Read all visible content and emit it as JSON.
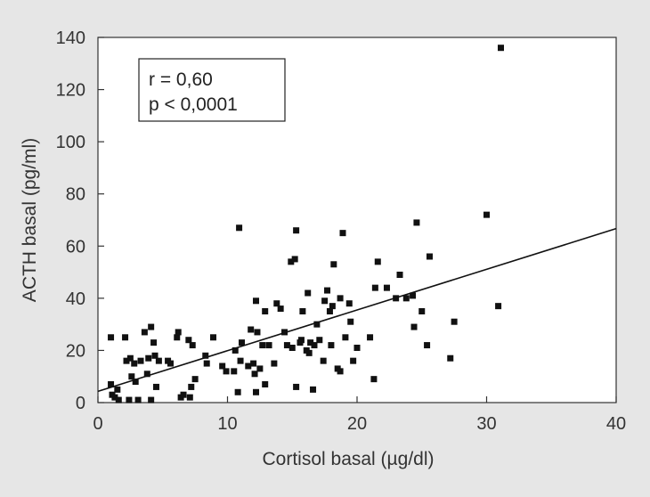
{
  "chart_data": {
    "type": "scatter",
    "title": "",
    "xlabel": "Cortisol basal (µg/dl)",
    "ylabel": "ACTH basal (pg/ml)",
    "xlim": [
      0,
      40
    ],
    "ylim": [
      0,
      140
    ],
    "x_ticks": [
      "0",
      "10",
      "20",
      "30",
      "40"
    ],
    "y_ticks": [
      "0",
      "20",
      "40",
      "60",
      "80",
      "100",
      "120",
      "140"
    ],
    "grid": false,
    "legend": "none",
    "annotations": {
      "r": "r = 0,60",
      "p": "p < 0,0001"
    },
    "regression_line": {
      "x": [
        0,
        40
      ],
      "y": [
        4.3,
        66.7
      ]
    },
    "marker_color": "#111111",
    "points": [
      [
        1.0,
        25
      ],
      [
        1.0,
        7
      ],
      [
        1.1,
        3
      ],
      [
        1.3,
        2
      ],
      [
        1.5,
        5
      ],
      [
        1.6,
        1
      ],
      [
        2.1,
        25
      ],
      [
        2.2,
        16
      ],
      [
        2.4,
        1
      ],
      [
        2.5,
        17
      ],
      [
        2.6,
        10
      ],
      [
        2.8,
        15
      ],
      [
        2.9,
        8
      ],
      [
        3.1,
        1
      ],
      [
        3.3,
        16
      ],
      [
        3.6,
        27
      ],
      [
        3.8,
        11
      ],
      [
        3.9,
        17
      ],
      [
        4.1,
        29
      ],
      [
        4.1,
        1
      ],
      [
        4.3,
        23
      ],
      [
        4.4,
        18
      ],
      [
        4.5,
        6
      ],
      [
        4.7,
        16
      ],
      [
        5.4,
        16
      ],
      [
        5.6,
        15
      ],
      [
        6.1,
        25
      ],
      [
        6.2,
        27
      ],
      [
        6.4,
        2
      ],
      [
        6.6,
        3
      ],
      [
        7.0,
        24
      ],
      [
        7.1,
        2
      ],
      [
        7.2,
        6
      ],
      [
        7.3,
        22
      ],
      [
        7.5,
        9
      ],
      [
        8.3,
        18
      ],
      [
        8.4,
        15
      ],
      [
        8.9,
        25
      ],
      [
        9.6,
        14
      ],
      [
        9.9,
        12
      ],
      [
        10.5,
        12
      ],
      [
        10.6,
        20
      ],
      [
        10.8,
        4
      ],
      [
        10.9,
        67
      ],
      [
        11.0,
        16
      ],
      [
        11.1,
        23
      ],
      [
        11.6,
        14
      ],
      [
        11.8,
        28
      ],
      [
        12.0,
        15
      ],
      [
        12.1,
        11
      ],
      [
        12.2,
        39
      ],
      [
        12.2,
        4
      ],
      [
        12.3,
        27
      ],
      [
        12.5,
        13
      ],
      [
        12.7,
        22
      ],
      [
        12.9,
        7
      ],
      [
        12.9,
        35
      ],
      [
        13.2,
        22
      ],
      [
        13.6,
        15
      ],
      [
        13.8,
        38
      ],
      [
        14.1,
        36
      ],
      [
        14.4,
        27
      ],
      [
        14.6,
        22
      ],
      [
        14.9,
        54
      ],
      [
        15.0,
        21
      ],
      [
        15.2,
        55
      ],
      [
        15.3,
        6
      ],
      [
        15.3,
        66
      ],
      [
        15.6,
        23
      ],
      [
        15.7,
        24
      ],
      [
        15.8,
        35
      ],
      [
        16.1,
        20
      ],
      [
        16.2,
        42
      ],
      [
        16.3,
        19
      ],
      [
        16.4,
        23
      ],
      [
        16.6,
        5
      ],
      [
        16.7,
        22
      ],
      [
        16.9,
        30
      ],
      [
        17.1,
        24
      ],
      [
        17.4,
        16
      ],
      [
        17.5,
        39
      ],
      [
        17.7,
        43
      ],
      [
        17.9,
        35
      ],
      [
        18.0,
        22
      ],
      [
        18.1,
        37
      ],
      [
        18.2,
        53
      ],
      [
        18.5,
        13
      ],
      [
        18.7,
        12
      ],
      [
        18.7,
        40
      ],
      [
        18.9,
        65
      ],
      [
        19.1,
        25
      ],
      [
        19.4,
        38
      ],
      [
        19.5,
        31
      ],
      [
        19.7,
        16
      ],
      [
        20.0,
        21
      ],
      [
        21.0,
        25
      ],
      [
        21.3,
        9
      ],
      [
        21.4,
        44
      ],
      [
        21.6,
        54
      ],
      [
        22.3,
        44
      ],
      [
        23.0,
        40
      ],
      [
        23.3,
        49
      ],
      [
        23.8,
        40
      ],
      [
        24.3,
        41
      ],
      [
        24.4,
        29
      ],
      [
        24.6,
        69
      ],
      [
        25.0,
        35
      ],
      [
        25.4,
        22
      ],
      [
        25.6,
        56
      ],
      [
        27.2,
        17
      ],
      [
        27.5,
        31
      ],
      [
        30.0,
        72
      ],
      [
        30.9,
        37
      ],
      [
        31.1,
        136
      ]
    ]
  }
}
